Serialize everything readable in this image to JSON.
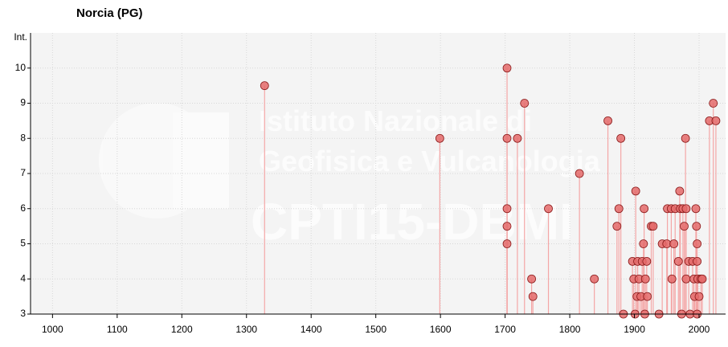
{
  "chart_data": {
    "type": "stem",
    "title": "Norcia (PG)",
    "y_label": "Int.",
    "watermark": [
      "Istituto Nazionale di",
      "Geofisica e Vulcanologia",
      "CPTI15-DBMI"
    ],
    "x": [
      1328,
      1599,
      1703,
      1703,
      1703,
      1703,
      1703,
      1719,
      1730,
      1741,
      1743,
      1767,
      1815,
      1838,
      1859,
      1879,
      1873,
      1876,
      1883,
      1897,
      1899,
      1902,
      1901,
      1904,
      1905,
      1907,
      1910,
      1912,
      1914,
      1915,
      1916,
      1917,
      1919,
      1920,
      1926,
      1929,
      1938,
      1943,
      1950,
      1951,
      1957,
      1958,
      1961,
      1963,
      1968,
      1970,
      1971,
      1973,
      1975,
      1977,
      1979,
      1980,
      1980,
      1984,
      1986,
      1990,
      1992,
      1993,
      1995,
      1996,
      1997,
      1997,
      1997,
      1998,
      2000,
      2003,
      2005,
      2016,
      2022,
      2026
    ],
    "values": [
      9.5,
      8,
      10,
      8,
      6,
      5.5,
      5,
      8,
      9,
      4,
      3.5,
      6,
      7,
      4,
      8.5,
      8,
      5.5,
      6,
      3,
      4.5,
      4,
      6.5,
      3,
      3.5,
      4.5,
      4,
      3.5,
      4.5,
      5,
      6,
      3,
      4,
      4.5,
      3.5,
      5.5,
      5.5,
      3,
      5,
      5,
      6,
      6,
      4,
      5,
      6,
      4.5,
      6.5,
      6,
      3,
      6,
      5.5,
      8,
      4,
      6,
      4.5,
      3,
      4.5,
      4,
      3.5,
      6,
      5.5,
      5,
      4.5,
      3,
      4,
      3.5,
      4,
      4,
      8.5,
      9,
      8.5
    ],
    "marker_color": "#e46a6a",
    "marker_edge": "#8a1a1a",
    "stem_color": "#f4a6a6",
    "xlim": [
      966,
      2041
    ],
    "ylim": [
      3,
      11
    ],
    "xticks": [
      1000,
      1100,
      1200,
      1300,
      1400,
      1500,
      1600,
      1700,
      1800,
      1900,
      2000
    ],
    "yticks": [
      3,
      4,
      5,
      6,
      7,
      8,
      9,
      10
    ],
    "grid": true
  }
}
